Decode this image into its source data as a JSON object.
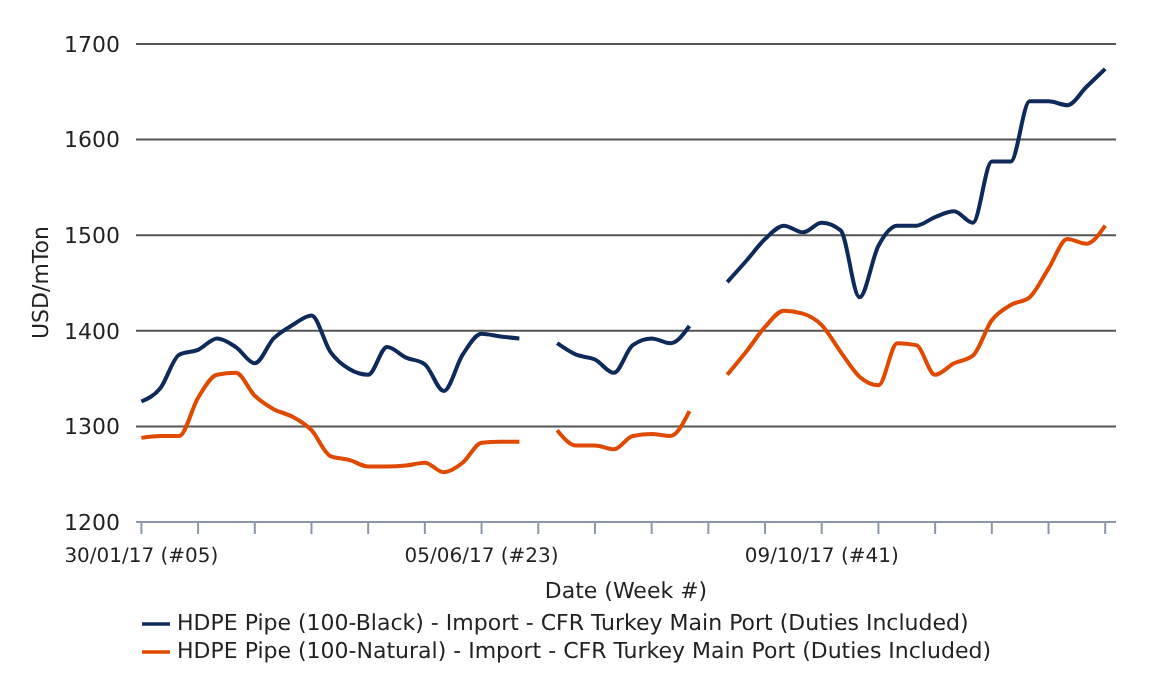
{
  "chart_data": {
    "type": "line",
    "xlabel": "Date (Week #)",
    "ylabel": "USD/mTon",
    "x": [
      "2017-01-30",
      "2017-02-06",
      "2017-02-13",
      "2017-02-20",
      "2017-02-27",
      "2017-03-06",
      "2017-03-13",
      "2017-03-20",
      "2017-03-27",
      "2017-04-03",
      "2017-04-10",
      "2017-04-17",
      "2017-04-24",
      "2017-05-01",
      "2017-05-08",
      "2017-05-15",
      "2017-05-22",
      "2017-05-29",
      "2017-06-05",
      "2017-06-12",
      "2017-06-19",
      "2017-06-26",
      "2017-07-03",
      "2017-07-10",
      "2017-07-17",
      "2017-07-24",
      "2017-07-31",
      "2017-08-07",
      "2017-08-14",
      "2017-08-21",
      "2017-08-28",
      "2017-09-04",
      "2017-09-11",
      "2017-09-18",
      "2017-09-25",
      "2017-10-02",
      "2017-10-09",
      "2017-10-16",
      "2017-10-23",
      "2017-10-30",
      "2017-11-06",
      "2017-11-13",
      "2017-11-20",
      "2017-11-27",
      "2017-12-04",
      "2017-12-11",
      "2017-12-18",
      "2017-12-25",
      "2018-01-01",
      "2018-01-08",
      "2018-01-15",
      "2018-01-22"
    ],
    "series": [
      {
        "name": "HDPE Pipe (100-Black) - Import - CFR Turkey Main Port (Duties Included)",
        "color": "#0d2a5a",
        "values": [
          1326,
          1340,
          1375,
          1380,
          1392,
          1383,
          1366,
          1392,
          1406,
          1416,
          1378,
          1360,
          1354,
          1383,
          1372,
          1365,
          1337,
          1375,
          1397,
          1394,
          1392,
          null,
          1387,
          1375,
          1370,
          1356,
          1385,
          1392,
          1387,
          1405,
          null,
          1451,
          1473,
          1496,
          1510,
          1503,
          1513,
          1505,
          1435,
          1489,
          1510,
          1510,
          1519,
          1525,
          1513,
          1577,
          1577,
          1640,
          1640,
          1636,
          1655,
          1674
        ]
      },
      {
        "name": "HDPE Pipe (100-Natural) - Import - CFR Turkey Main Port (Duties Included)",
        "color": "#e04a00",
        "values": [
          1288,
          1290,
          1290,
          1330,
          1354,
          1356,
          1332,
          1318,
          1310,
          1296,
          1269,
          1265,
          1258,
          1258,
          1259,
          1262,
          1252,
          1262,
          1283,
          1284,
          1284,
          null,
          1296,
          1280,
          1280,
          1276,
          1290,
          1292,
          1290,
          1316,
          null,
          1354,
          1378,
          1404,
          1421,
          1418,
          1406,
          1378,
          1352,
          1343,
          1387,
          1385,
          1354,
          1366,
          1374,
          1411,
          1427,
          1435,
          1465,
          1496,
          1491,
          1510
        ]
      }
    ],
    "xlim": [
      "2017-01-28",
      "2018-01-26"
    ],
    "xticks": [
      {
        "value": "2017-01-30",
        "label": "30/01/17 (#05)"
      },
      {
        "value": "2017-02-20",
        "label": null
      },
      {
        "value": "2017-03-13",
        "label": null
      },
      {
        "value": "2017-04-03",
        "label": null
      },
      {
        "value": "2017-04-24",
        "label": null
      },
      {
        "value": "2017-05-15",
        "label": null
      },
      {
        "value": "2017-06-05",
        "label": "05/06/17 (#23)"
      },
      {
        "value": "2017-06-26",
        "label": null
      },
      {
        "value": "2017-07-17",
        "label": null
      },
      {
        "value": "2017-08-07",
        "label": null
      },
      {
        "value": "2017-08-28",
        "label": null
      },
      {
        "value": "2017-09-18",
        "label": null
      },
      {
        "value": "2017-10-09",
        "label": "09/10/17 (#41)"
      },
      {
        "value": "2017-10-30",
        "label": null
      },
      {
        "value": "2017-11-20",
        "label": null
      },
      {
        "value": "2017-12-11",
        "label": null
      },
      {
        "value": "2018-01-01",
        "label": null
      },
      {
        "value": "2018-01-22",
        "label": null
      }
    ],
    "ylim": [
      1200,
      1700
    ],
    "yticks": [
      1200,
      1300,
      1400,
      1500,
      1600,
      1700
    ],
    "grid": "y",
    "legend": "bottom",
    "marker": "none",
    "line_style": "solid"
  }
}
